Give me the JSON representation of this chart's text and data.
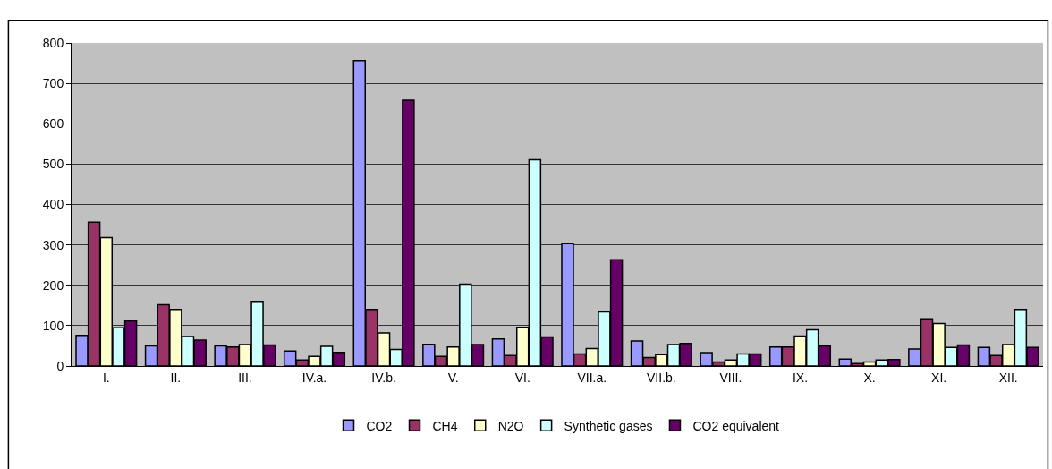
{
  "chart_data": {
    "type": "bar",
    "categories": [
      "I.",
      "II.",
      "III.",
      "IV.a.",
      "IV.b.",
      "V.",
      "VI.",
      "VII.a.",
      "VII.b.",
      "VIII.",
      "IX.",
      "X.",
      "XI.",
      "XII."
    ],
    "series": [
      {
        "name": "CO2",
        "color": "#9999ff",
        "values": [
          76,
          50,
          50,
          37,
          756,
          54,
          67,
          303,
          62,
          33,
          47,
          17,
          42,
          46
        ]
      },
      {
        "name": "CH4",
        "color": "#993366",
        "values": [
          356,
          152,
          47,
          15,
          140,
          24,
          26,
          30,
          21,
          10,
          47,
          6,
          117,
          26
        ]
      },
      {
        "name": "N2O",
        "color": "#ffffcc",
        "values": [
          318,
          140,
          53,
          24,
          82,
          47,
          96,
          43,
          28,
          15,
          74,
          10,
          105,
          53
        ]
      },
      {
        "name": "Synthetic gases",
        "color": "#ccffff",
        "values": [
          95,
          73,
          160,
          49,
          41,
          203,
          511,
          134,
          53,
          30,
          90,
          15,
          46,
          140
        ]
      },
      {
        "name": "CO2 equivalent",
        "color": "#660066",
        "values": [
          112,
          64,
          52,
          34,
          658,
          53,
          72,
          263,
          56,
          30,
          50,
          16,
          52,
          46
        ]
      }
    ],
    "ylim": [
      0,
      800
    ],
    "yticks": [
      0,
      100,
      200,
      300,
      400,
      500,
      600,
      700,
      800
    ],
    "grid": "y",
    "legend": "bottom"
  }
}
